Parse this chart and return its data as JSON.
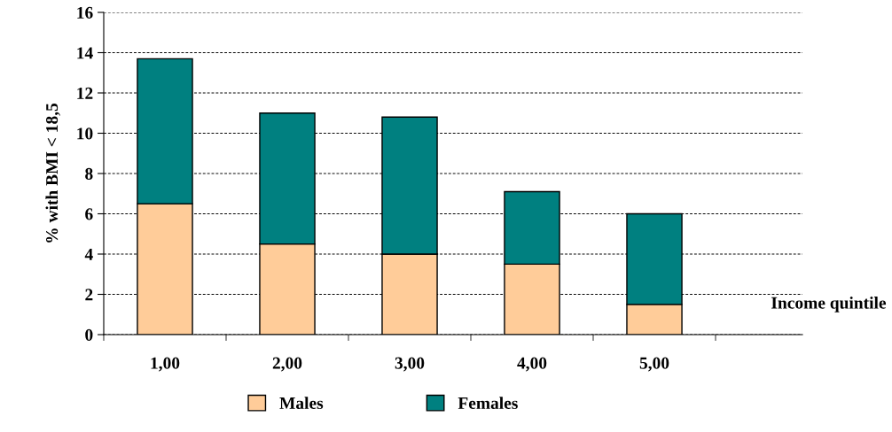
{
  "chart_data": {
    "type": "bar",
    "stacked": true,
    "xlabel": "Income quintile",
    "ylabel": "% with BMI < 18,5",
    "categories": [
      "1,00",
      "2,00",
      "3,00",
      "4,00",
      "5,00"
    ],
    "series": [
      {
        "name": "Males",
        "color": "#ffcc99",
        "values": [
          6.5,
          4.5,
          4.0,
          3.5,
          1.5
        ]
      },
      {
        "name": "Females",
        "color": "#008080",
        "values": [
          7.2,
          6.5,
          6.8,
          3.6,
          4.5
        ]
      }
    ],
    "ylim": [
      0,
      16
    ],
    "yticks": [
      0,
      2,
      4,
      6,
      8,
      10,
      12,
      14,
      16
    ],
    "grid": "y",
    "legend": "bottom"
  }
}
